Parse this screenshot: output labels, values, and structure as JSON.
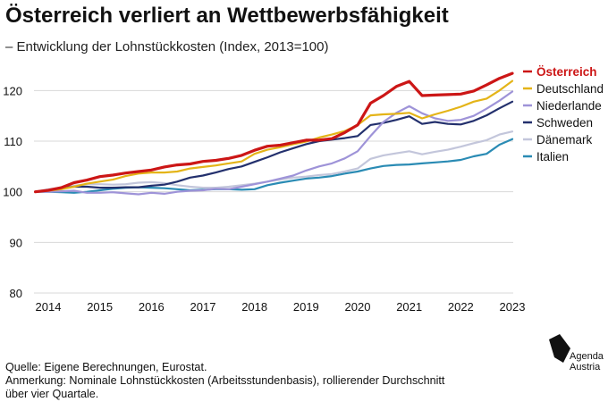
{
  "header": {
    "title": "Österreich verliert an Wettbewerbsfähigkeit",
    "subtitle": "– Entwicklung der Lohnstückkosten (Index, 2013=100)"
  },
  "footer": {
    "source": "Quelle: Eigene Berechnungen, Eurostat.",
    "note_line1": "Anmerkung: Nominale Lohnstückkosten (Arbeitsstundenbasis), rollierender Durchschnitt",
    "note_line2": "über vier Quartale."
  },
  "logo": {
    "line1": "Agenda",
    "line2": "Austria"
  },
  "chart_data": {
    "type": "line",
    "title": "Österreich verliert an Wettbewerbsfähigkeit",
    "subtitle": "– Entwicklung der Lohnstückkosten (Index, 2013=100)",
    "xlabel": "",
    "ylabel": "",
    "xlim": [
      2013.75,
      2023.0
    ],
    "ylim": [
      80,
      125
    ],
    "y_ticks": [
      80,
      90,
      100,
      110,
      120
    ],
    "x_ticks": [
      2014,
      2015,
      2016,
      2017,
      2018,
      2019,
      2020,
      2021,
      2022,
      2023
    ],
    "x_tick_labels": [
      "2014",
      "2015",
      "2016",
      "2017",
      "2018",
      "2019",
      "2020",
      "2021",
      "2022",
      "2023"
    ],
    "grid": "horizontal",
    "legend_position": "right",
    "x": [
      2013.75,
      2014.0,
      2014.25,
      2014.5,
      2014.75,
      2015.0,
      2015.25,
      2015.5,
      2015.75,
      2016.0,
      2016.25,
      2016.5,
      2016.75,
      2017.0,
      2017.25,
      2017.5,
      2017.75,
      2018.0,
      2018.25,
      2018.5,
      2018.75,
      2019.0,
      2019.25,
      2019.5,
      2019.75,
      2020.0,
      2020.25,
      2020.5,
      2020.75,
      2021.0,
      2021.25,
      2021.5,
      2021.75,
      2022.0,
      2022.25,
      2022.5,
      2022.75,
      2023.0
    ],
    "series": [
      {
        "name": "Österreich",
        "color": "#cc1616",
        "values": [
          100,
          100.3,
          100.8,
          101.8,
          102.3,
          103.0,
          103.3,
          103.7,
          104.0,
          104.3,
          104.9,
          105.3,
          105.5,
          106.0,
          106.2,
          106.6,
          107.2,
          108.2,
          109.0,
          109.2,
          109.7,
          110.2,
          110.2,
          110.5,
          111.7,
          113.2,
          117.5,
          119.0,
          120.8,
          121.8,
          119.0,
          119.1,
          119.2,
          119.3,
          119.9,
          121.1,
          122.4,
          123.4
        ]
      },
      {
        "name": "Deutschland",
        "color": "#e4b418",
        "values": [
          100,
          100.2,
          100.5,
          101.0,
          101.6,
          102.0,
          102.4,
          103.1,
          103.6,
          103.8,
          103.8,
          104.0,
          104.6,
          104.9,
          105.2,
          105.6,
          106.0,
          107.5,
          108.3,
          108.8,
          109.4,
          109.9,
          110.7,
          111.3,
          112.0,
          113.2,
          115.1,
          115.3,
          115.4,
          115.6,
          114.5,
          115.3,
          116.0,
          116.8,
          117.8,
          118.4,
          120.0,
          121.9
        ]
      },
      {
        "name": "Niederlande",
        "color": "#9e93d8",
        "values": [
          100,
          100.0,
          100.1,
          100.2,
          99.8,
          99.8,
          99.9,
          99.7,
          99.5,
          99.8,
          99.6,
          100.0,
          100.2,
          100.3,
          100.6,
          100.5,
          101.0,
          101.5,
          102.0,
          102.6,
          103.2,
          104.2,
          105.0,
          105.6,
          106.6,
          108.0,
          111.0,
          113.8,
          115.6,
          116.9,
          115.5,
          114.5,
          114.0,
          114.2,
          115.0,
          116.4,
          118.0,
          119.8
        ]
      },
      {
        "name": "Schweden",
        "color": "#23306d",
        "values": [
          100,
          100.3,
          100.7,
          101.0,
          101.0,
          100.8,
          100.8,
          100.9,
          100.9,
          101.2,
          101.4,
          102.0,
          102.8,
          103.2,
          103.8,
          104.5,
          105.0,
          105.9,
          106.8,
          107.8,
          108.6,
          109.4,
          110.0,
          110.3,
          110.6,
          111.0,
          113.2,
          113.6,
          114.2,
          114.9,
          113.4,
          113.8,
          113.4,
          113.3,
          114.0,
          115.1,
          116.5,
          117.8
        ]
      },
      {
        "name": "Dänemark",
        "color": "#c3c6db",
        "values": [
          100,
          100.5,
          100.8,
          101.2,
          101.5,
          101.5,
          101.4,
          101.5,
          101.8,
          101.9,
          101.7,
          101.3,
          101.0,
          100.8,
          100.8,
          101.0,
          101.3,
          101.6,
          102.0,
          102.4,
          102.8,
          103.0,
          103.3,
          103.5,
          104.0,
          104.6,
          106.5,
          107.2,
          107.6,
          108.0,
          107.4,
          107.9,
          108.3,
          108.9,
          109.6,
          110.2,
          111.3,
          111.9
        ]
      },
      {
        "name": "Italien",
        "color": "#2a8bb4",
        "values": [
          100,
          100.0,
          99.9,
          99.8,
          100.0,
          100.3,
          100.6,
          100.8,
          100.9,
          100.8,
          100.7,
          100.5,
          100.3,
          100.4,
          100.5,
          100.5,
          100.4,
          100.5,
          101.3,
          101.8,
          102.2,
          102.6,
          102.8,
          103.1,
          103.6,
          104.0,
          104.6,
          105.1,
          105.3,
          105.4,
          105.6,
          105.8,
          106.0,
          106.3,
          107.0,
          107.5,
          109.3,
          110.4
        ]
      }
    ]
  }
}
